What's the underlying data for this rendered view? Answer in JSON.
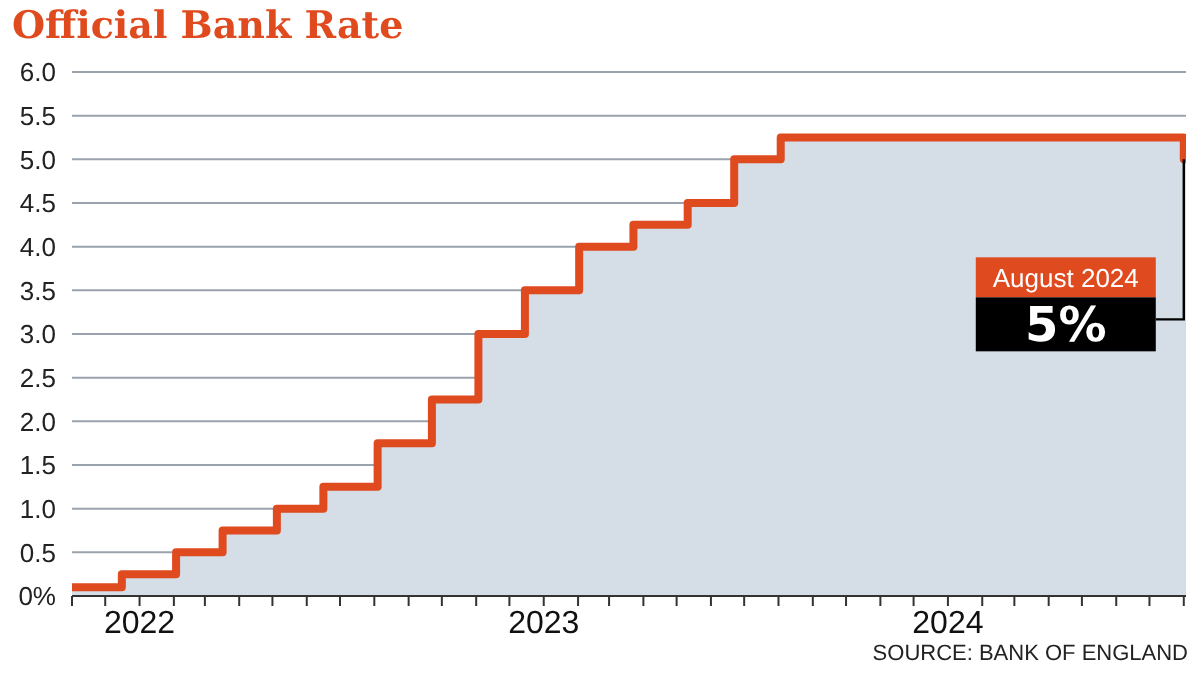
{
  "chart_data": {
    "type": "area",
    "title": "Official Bank Rate",
    "x": [
      "2021-11-01",
      "2021-12-16",
      "2021-12-16",
      "2022-02-03",
      "2022-02-03",
      "2022-03-17",
      "2022-03-17",
      "2022-05-05",
      "2022-05-05",
      "2022-06-16",
      "2022-06-16",
      "2022-08-04",
      "2022-08-04",
      "2022-09-22",
      "2022-09-22",
      "2022-11-03",
      "2022-11-03",
      "2022-12-15",
      "2022-12-15",
      "2023-02-02",
      "2023-02-02",
      "2023-03-23",
      "2023-03-23",
      "2023-05-11",
      "2023-05-11",
      "2023-06-22",
      "2023-06-22",
      "2023-08-03",
      "2023-08-03",
      "2024-08-01",
      "2024-08-01",
      "2024-08-03"
    ],
    "series": [
      {
        "color": "#e04a1f",
        "values": [
          0.1,
          0.1,
          0.25,
          0.25,
          0.5,
          0.5,
          0.75,
          0.75,
          1.0,
          1.0,
          1.25,
          1.25,
          1.75,
          1.75,
          2.25,
          2.25,
          3.0,
          3.0,
          3.5,
          3.5,
          4.0,
          4.0,
          4.25,
          4.25,
          4.5,
          4.5,
          5.0,
          5.0,
          5.25,
          5.25,
          5.0,
          5.0
        ]
      }
    ],
    "xlim": [
      "2021-11-01",
      "2024-08-03"
    ],
    "xticks": [
      {
        "value": "2021-11-01",
        "label": null
      },
      {
        "value": "2021-12-01",
        "label": null
      },
      {
        "value": "2022-01-01",
        "label": "2022"
      },
      {
        "value": "2022-02-01",
        "label": null
      },
      {
        "value": "2022-03-01",
        "label": null
      },
      {
        "value": "2022-04-01",
        "label": null
      },
      {
        "value": "2022-05-01",
        "label": null
      },
      {
        "value": "2022-06-01",
        "label": null
      },
      {
        "value": "2022-07-01",
        "label": null
      },
      {
        "value": "2022-08-01",
        "label": null
      },
      {
        "value": "2022-09-01",
        "label": null
      },
      {
        "value": "2022-10-01",
        "label": null
      },
      {
        "value": "2022-11-01",
        "label": null
      },
      {
        "value": "2022-12-01",
        "label": null
      },
      {
        "value": "2023-01-01",
        "label": "2023"
      },
      {
        "value": "2023-02-01",
        "label": null
      },
      {
        "value": "2023-03-01",
        "label": null
      },
      {
        "value": "2023-04-01",
        "label": null
      },
      {
        "value": "2023-05-01",
        "label": null
      },
      {
        "value": "2023-06-01",
        "label": null
      },
      {
        "value": "2023-07-01",
        "label": null
      },
      {
        "value": "2023-08-01",
        "label": null
      },
      {
        "value": "2023-09-01",
        "label": null
      },
      {
        "value": "2023-10-01",
        "label": null
      },
      {
        "value": "2023-11-01",
        "label": null
      },
      {
        "value": "2023-12-01",
        "label": null
      },
      {
        "value": "2024-01-01",
        "label": "2024"
      },
      {
        "value": "2024-02-01",
        "label": null
      },
      {
        "value": "2024-03-01",
        "label": null
      },
      {
        "value": "2024-04-01",
        "label": null
      },
      {
        "value": "2024-05-01",
        "label": null
      },
      {
        "value": "2024-06-01",
        "label": null
      },
      {
        "value": "2024-07-01",
        "label": null
      },
      {
        "value": "2024-08-01",
        "label": null
      }
    ],
    "ylim": [
      0,
      6
    ],
    "yticks": [
      {
        "value": 0,
        "label": "0%"
      },
      {
        "value": 0.5,
        "label": "0.5"
      },
      {
        "value": 1,
        "label": "1.0"
      },
      {
        "value": 1.5,
        "label": "1.5"
      },
      {
        "value": 2,
        "label": "2.0"
      },
      {
        "value": 2.5,
        "label": "2.5"
      },
      {
        "value": 3,
        "label": "3.0"
      },
      {
        "value": 3.5,
        "label": "3.5"
      },
      {
        "value": 4,
        "label": "4.0"
      },
      {
        "value": 4.5,
        "label": "4.5"
      },
      {
        "value": 5,
        "label": "5.0"
      },
      {
        "value": 5.5,
        "label": "5.5"
      },
      {
        "value": 6,
        "label": "6.0"
      }
    ],
    "grid": "y",
    "legend": false,
    "marker": "none",
    "annotations": [
      {
        "text": "August 2024",
        "x": "2024-08-01",
        "y": 5
      },
      {
        "text": "5%",
        "x": "2024-08-01",
        "y": 5
      },
      "SOURCE: BANK OF ENGLAND"
    ]
  }
}
